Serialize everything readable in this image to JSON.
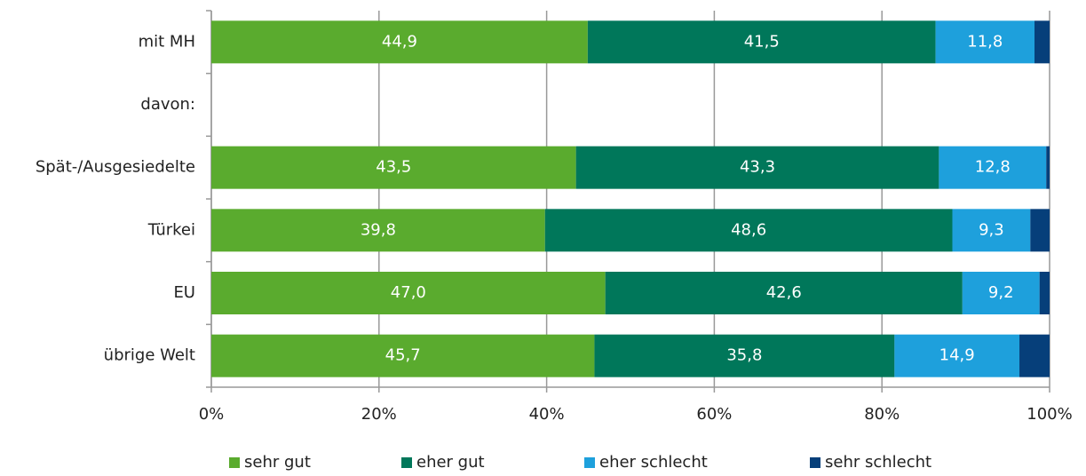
{
  "chart_data": {
    "type": "stacked_bar_horizontal",
    "categories": [
      "mit MH",
      "davon:",
      "Spät-/Ausgesiedelte",
      "Türkei",
      "EU",
      "übrige Welt"
    ],
    "series": [
      {
        "name": "sehr gut",
        "color": "#5aab2e",
        "values": [
          44.9,
          null,
          43.5,
          39.8,
          47.0,
          45.7
        ],
        "value_labels": [
          "44,9",
          null,
          "43,5",
          "39,8",
          "47,0",
          "45,7"
        ]
      },
      {
        "name": "eher gut",
        "color": "#00775a",
        "values": [
          41.5,
          null,
          43.3,
          48.6,
          42.6,
          35.8
        ],
        "value_labels": [
          "41,5",
          null,
          "43,3",
          "48,6",
          "42,6",
          "35,8"
        ]
      },
      {
        "name": "eher schlecht",
        "color": "#1ea0dc",
        "values": [
          11.8,
          null,
          12.8,
          9.3,
          9.2,
          14.9
        ],
        "value_labels": [
          "11,8",
          null,
          "12,8",
          "9,3",
          "9,2",
          "14,9"
        ]
      },
      {
        "name": "sehr schlecht",
        "color": "#063f7a",
        "values": [
          1.8,
          null,
          0.4,
          2.3,
          1.2,
          3.6
        ]
      }
    ],
    "xlim": [
      0,
      100
    ],
    "xticks": [
      {
        "value": 0,
        "label": "0%"
      },
      {
        "value": 20,
        "label": "20%"
      },
      {
        "value": 40,
        "label": "40%"
      },
      {
        "value": 60,
        "label": "60%"
      },
      {
        "value": 80,
        "label": "80%"
      },
      {
        "value": 100,
        "label": "100%"
      }
    ],
    "grid": true,
    "legend": "bottom"
  }
}
